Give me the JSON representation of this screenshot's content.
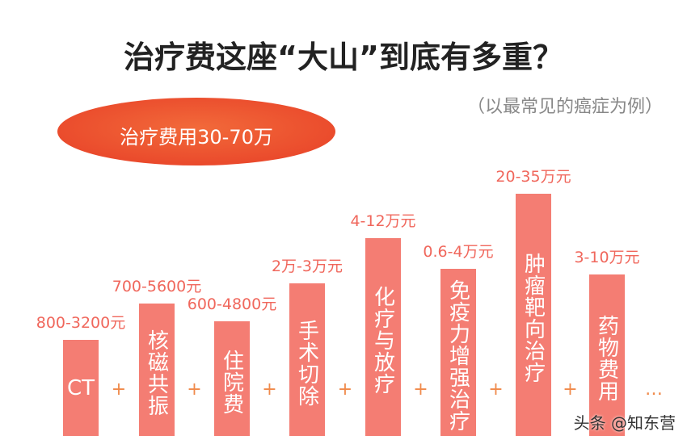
{
  "header": {
    "title": "治疗费这座“大山”到底有多重？",
    "subtitle": "（以最常见的癌症为例）",
    "badge": "治疗费用30-70万"
  },
  "items": [
    {
      "label": "CT",
      "cost": "800-3200元"
    },
    {
      "label": "核磁共振",
      "cost": "700-5600元"
    },
    {
      "label": "住院费",
      "cost": "600-4800元"
    },
    {
      "label": "手术切除",
      "cost": "2万-3万元"
    },
    {
      "label": "化疗与放疗",
      "cost": "4-12万元"
    },
    {
      "label": "免疫力增强治疗",
      "cost": "0.6-4万元"
    },
    {
      "label": "肿瘤靶向治疗",
      "cost": "20-35万元"
    },
    {
      "label": "药物费用",
      "cost": "3-10万元"
    }
  ],
  "separator": "+",
  "ellipsis": "…",
  "watermark": "头条 @知东营"
}
